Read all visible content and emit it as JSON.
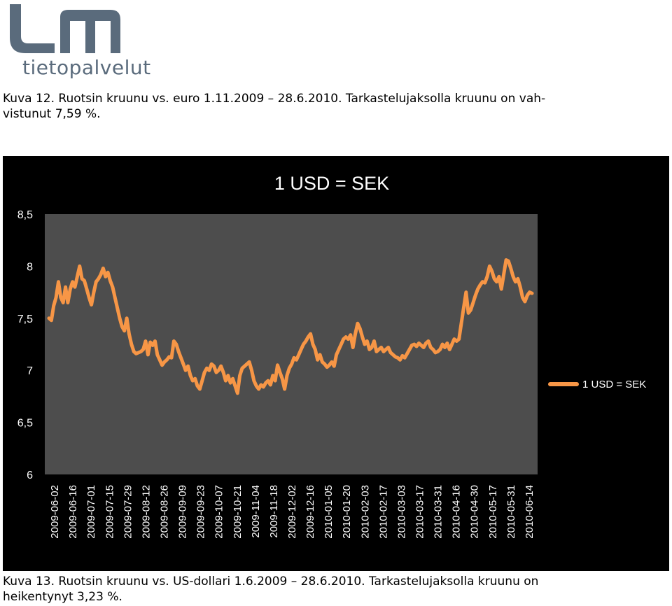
{
  "logo": {
    "mark": "lm",
    "tagline": "tietopalvelut",
    "color": "#5a6b7c"
  },
  "caption_top": {
    "line1": "Kuva 12. Ruotsin kruunu vs. euro 1.11.2009 – 28.6.2010. Tarkastelujaksolla kruunu on vah-",
    "line2": "vistunut 7,59 %."
  },
  "caption_bottom": {
    "line1": "Kuva 13. Ruotsin kruunu vs. US-dollari 1.6.2009 – 28.6.2010. Tarkastelujaksolla kruunu on",
    "line2": "heikentynyt 3,23 %."
  },
  "colors": {
    "chart_background": "#000000",
    "plot_area": "#4d4d4d",
    "line": "#f79646",
    "text": "#ffffff"
  },
  "chart_data": {
    "type": "line",
    "title": "1 USD = SEK",
    "xlabel": "",
    "ylabel": "",
    "ylim": [
      6,
      8.5
    ],
    "yticks": [
      "8,5",
      "8",
      "7,5",
      "7",
      "6,5",
      "6"
    ],
    "ytick_values": [
      8.5,
      8,
      7.5,
      7,
      6.5,
      6
    ],
    "grid": false,
    "legend_position": "right",
    "x_tick_labels": [
      "2009-06-02",
      "2009-06-16",
      "2009-07-01",
      "2009-07-15",
      "2009-07-29",
      "2009-08-12",
      "2009-08-26",
      "2009-09-09",
      "2009-09-23",
      "2009-10-07",
      "2009-10-21",
      "2009-11-04",
      "2009-11-18",
      "2009-12-02",
      "2009-12-16",
      "2010-01-05",
      "2010-01-20",
      "2010-02-03",
      "2010-02-17",
      "2010-03-03",
      "2010-03-17",
      "2010-03-31",
      "2010-04-16",
      "2010-04-30",
      "2010-05-17",
      "2010-05-31",
      "2010-06-14"
    ],
    "series": [
      {
        "name": "1 USD = SEK",
        "values": [
          7.5,
          7.48,
          7.62,
          7.7,
          7.85,
          7.7,
          7.65,
          7.8,
          7.65,
          7.78,
          7.85,
          7.8,
          7.9,
          8.0,
          7.88,
          7.86,
          7.78,
          7.7,
          7.63,
          7.75,
          7.85,
          7.88,
          7.92,
          7.98,
          7.9,
          7.94,
          7.86,
          7.8,
          7.7,
          7.6,
          7.5,
          7.42,
          7.38,
          7.5,
          7.35,
          7.25,
          7.18,
          7.16,
          7.17,
          7.18,
          7.2,
          7.28,
          7.15,
          7.27,
          7.24,
          7.28,
          7.15,
          7.1,
          7.05,
          7.08,
          7.1,
          7.13,
          7.12,
          7.28,
          7.25,
          7.18,
          7.12,
          7.06,
          7.0,
          7.04,
          6.95,
          6.9,
          6.92,
          6.85,
          6.82,
          6.9,
          6.98,
          7.02,
          7.0,
          7.06,
          7.04,
          6.98,
          7.0,
          7.04,
          6.98,
          6.9,
          6.95,
          6.88,
          6.92,
          6.85,
          6.78,
          6.95,
          7.02,
          7.04,
          7.06,
          7.08,
          7.0,
          6.9,
          6.85,
          6.82,
          6.86,
          6.84,
          6.88,
          6.9,
          6.86,
          6.95,
          6.9,
          7.05,
          6.98,
          6.92,
          6.82,
          6.95,
          7.02,
          7.06,
          7.12,
          7.1,
          7.15,
          7.2,
          7.25,
          7.28,
          7.32,
          7.35,
          7.25,
          7.2,
          7.1,
          7.15,
          7.08,
          7.06,
          7.03,
          7.05,
          7.08,
          7.04,
          7.15,
          7.2,
          7.25,
          7.3,
          7.32,
          7.3,
          7.34,
          7.22,
          7.35,
          7.45,
          7.4,
          7.32,
          7.25,
          7.28,
          7.2,
          7.22,
          7.28,
          7.18,
          7.2,
          7.22,
          7.18,
          7.2,
          7.22,
          7.17,
          7.15,
          7.13,
          7.12,
          7.1,
          7.14,
          7.12,
          7.16,
          7.2,
          7.24,
          7.25,
          7.23,
          7.26,
          7.24,
          7.22,
          7.26,
          7.28,
          7.22,
          7.2,
          7.17,
          7.18,
          7.2,
          7.25,
          7.22,
          7.26,
          7.2,
          7.25,
          7.3,
          7.28,
          7.3,
          7.45,
          7.6,
          7.75,
          7.55,
          7.58,
          7.65,
          7.72,
          7.78,
          7.82,
          7.85,
          7.84,
          7.9,
          8.0,
          7.95,
          7.88,
          7.85,
          7.9,
          7.78,
          7.92,
          8.06,
          8.05,
          7.98,
          7.9,
          7.85,
          7.88,
          7.8,
          7.7,
          7.66,
          7.72,
          7.75,
          7.74
        ]
      }
    ]
  }
}
